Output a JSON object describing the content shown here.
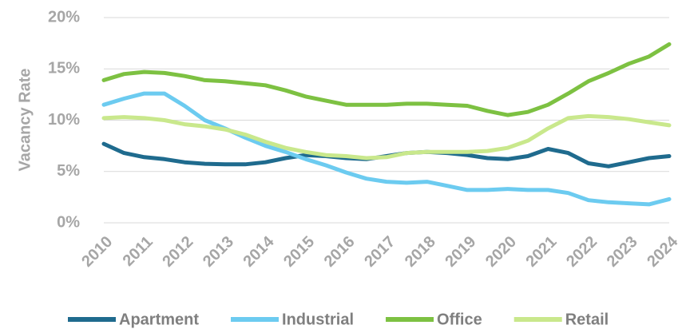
{
  "chart_data": {
    "type": "line",
    "y_label": "Vacancy Rate",
    "x": [
      2010,
      2010.5,
      2011,
      2011.5,
      2012,
      2012.5,
      2013,
      2013.5,
      2014,
      2014.5,
      2015,
      2015.5,
      2016,
      2016.5,
      2017,
      2017.5,
      2018,
      2018.5,
      2019,
      2019.5,
      2020,
      2020.5,
      2021,
      2021.5,
      2022,
      2022.5,
      2023,
      2023.5,
      2024
    ],
    "xlim": [
      2010,
      2024
    ],
    "xticks": [
      2010,
      2011,
      2012,
      2013,
      2014,
      2015,
      2016,
      2017,
      2018,
      2019,
      2020,
      2021,
      2022,
      2023,
      2024
    ],
    "ylim": [
      0,
      20
    ],
    "yticks": [
      {
        "value": 0,
        "label": "0%"
      },
      {
        "value": 5,
        "label": "5%"
      },
      {
        "value": 10,
        "label": "10%"
      },
      {
        "value": 15,
        "label": "15%"
      },
      {
        "value": 20,
        "label": "20%"
      }
    ],
    "grid": true,
    "legend": "bottom",
    "series": [
      {
        "name": "Apartment",
        "color": "#1f6b8e",
        "values": [
          7.7,
          6.8,
          6.4,
          6.2,
          5.9,
          5.75,
          5.7,
          5.7,
          5.9,
          6.3,
          6.6,
          6.5,
          6.3,
          6.2,
          6.5,
          6.8,
          6.9,
          6.8,
          6.6,
          6.3,
          6.2,
          6.5,
          7.2,
          6.8,
          5.8,
          5.5,
          5.9,
          6.3,
          6.5
        ]
      },
      {
        "name": "Industrial",
        "color": "#6ccbf0",
        "values": [
          11.5,
          12.1,
          12.6,
          12.6,
          11.4,
          10.0,
          9.2,
          8.3,
          7.5,
          6.9,
          6.2,
          5.6,
          4.9,
          4.3,
          4.0,
          3.9,
          4.0,
          3.6,
          3.2,
          3.2,
          3.3,
          3.2,
          3.2,
          2.9,
          2.2,
          2.0,
          1.9,
          1.8,
          2.3
        ]
      },
      {
        "name": "Office",
        "color": "#7dc142",
        "values": [
          13.9,
          14.5,
          14.7,
          14.6,
          14.3,
          13.9,
          13.8,
          13.6,
          13.4,
          12.9,
          12.3,
          11.9,
          11.5,
          11.5,
          11.5,
          11.6,
          11.6,
          11.5,
          11.4,
          10.9,
          10.5,
          10.8,
          11.5,
          12.6,
          13.8,
          14.6,
          15.5,
          16.2,
          17.4
        ]
      },
      {
        "name": "Retail",
        "color": "#c9e88c",
        "values": [
          10.2,
          10.3,
          10.2,
          10.0,
          9.6,
          9.4,
          9.1,
          8.6,
          7.9,
          7.3,
          6.9,
          6.6,
          6.5,
          6.3,
          6.4,
          6.8,
          6.9,
          6.9,
          6.9,
          7.0,
          7.3,
          8.0,
          9.2,
          10.2,
          10.4,
          10.3,
          10.1,
          9.8,
          9.5
        ]
      }
    ]
  }
}
